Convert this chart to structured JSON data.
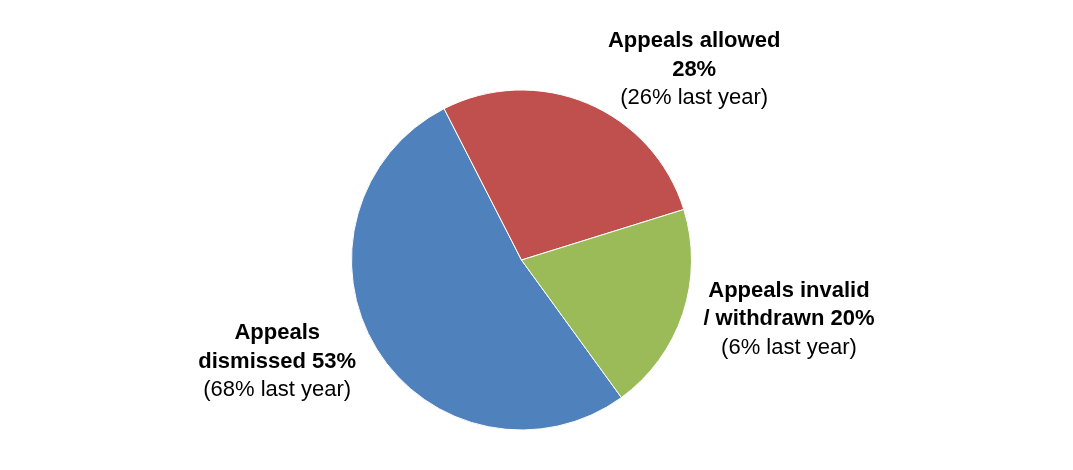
{
  "chart_data": {
    "type": "pie",
    "categories": [
      "Appeals dismissed",
      "Appeals allowed",
      "Appeals invalid / withdrawn"
    ],
    "values": [
      53,
      28,
      20
    ],
    "value_labels": [
      "53%",
      "28%",
      "20%"
    ],
    "colors": [
      "#4f81bd",
      "#c0504d",
      "#9bbb59"
    ],
    "annotations": [
      "(68% last year)",
      "(26% last year)",
      "(6% last year)"
    ],
    "legend": false
  }
}
